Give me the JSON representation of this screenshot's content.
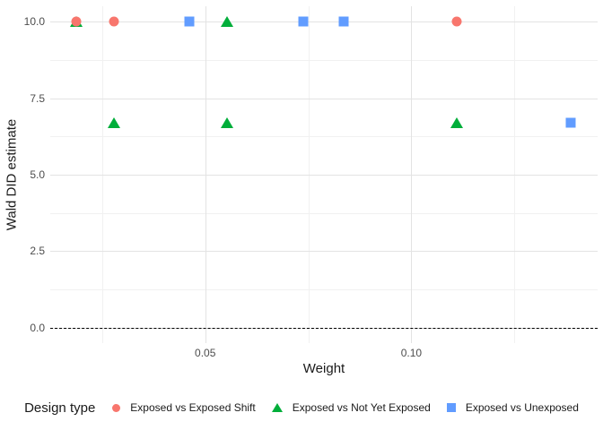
{
  "chart_data": {
    "type": "scatter",
    "title": "",
    "xlabel": "Weight",
    "ylabel": "Wald DID estimate",
    "xlim": [
      0.0124,
      0.1452
    ],
    "ylim": [
      -0.5,
      10.5
    ],
    "grid": true,
    "x_ticks": [
      {
        "value": 0.05,
        "label": "0.05"
      },
      {
        "value": 0.1,
        "label": "0.10"
      }
    ],
    "x_minor_ticks": [
      0.025,
      0.075,
      0.125
    ],
    "y_ticks": [
      {
        "value": 0.0,
        "label": "0.0"
      },
      {
        "value": 2.5,
        "label": "2.5"
      },
      {
        "value": 5.0,
        "label": "5.0"
      },
      {
        "value": 7.5,
        "label": "7.5"
      },
      {
        "value": 10.0,
        "label": "10.0"
      }
    ],
    "y_minor_ticks": [
      1.25,
      3.75,
      6.25,
      8.75
    ],
    "reference_line": {
      "y": 0,
      "style": "dashed",
      "color": "#000000"
    },
    "legend_title": "Design type",
    "legend_position": "bottom",
    "series": [
      {
        "name": "Exposed vs Exposed Shift",
        "marker": "circle",
        "color": "#F8766D",
        "points": [
          {
            "x": 0.0187,
            "y": 10.0
          },
          {
            "x": 0.0278,
            "y": 10.0
          },
          {
            "x": 0.1111,
            "y": 10.0
          }
        ]
      },
      {
        "name": "Exposed vs Not Yet Exposed",
        "marker": "triangle",
        "color": "#00AE3A",
        "points": [
          {
            "x": 0.0187,
            "y": 10.0
          },
          {
            "x": 0.0553,
            "y": 10.0
          },
          {
            "x": 0.0278,
            "y": 6.7
          },
          {
            "x": 0.0553,
            "y": 6.7
          },
          {
            "x": 0.1111,
            "y": 6.7
          }
        ]
      },
      {
        "name": "Exposed vs Unexposed",
        "marker": "square",
        "color": "#619CFF",
        "points": [
          {
            "x": 0.0461,
            "y": 10.0
          },
          {
            "x": 0.0739,
            "y": 10.0
          },
          {
            "x": 0.0835,
            "y": 10.0
          },
          {
            "x": 0.1387,
            "y": 6.7
          }
        ]
      }
    ]
  }
}
